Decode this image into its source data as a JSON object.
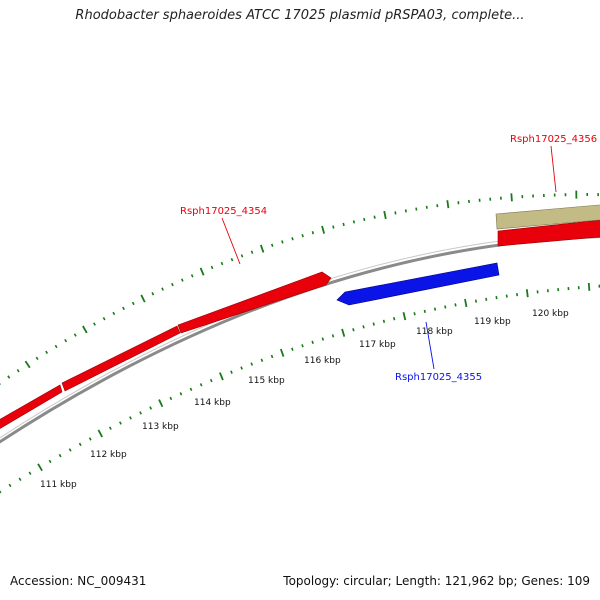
{
  "title": "Rhodobacter sphaeroides ATCC 17025 plasmid pRSPA03, complete...",
  "footer": {
    "accession": "Accession: NC_009431",
    "summary": "Topology: circular; Length: 121,962 bp; Genes: 109"
  },
  "colors": {
    "gene_forward": "#e8000b",
    "gene_reverse": "#0a14e6",
    "gene_other": "#c2bb85",
    "backbone": "#8a8a8a",
    "ticks": "#1a7a1a"
  },
  "kbp_labels": [
    "111 kbp",
    "112 kbp",
    "113 kbp",
    "114 kbp",
    "115 kbp",
    "116 kbp",
    "117 kbp",
    "118 kbp",
    "119 kbp",
    "120 kbp"
  ],
  "gene_labels": {
    "rsph4354": "Rsph17025_4354",
    "rsph4355": "Rsph17025_4355",
    "rsph4356": "Rsph17025_4356"
  }
}
